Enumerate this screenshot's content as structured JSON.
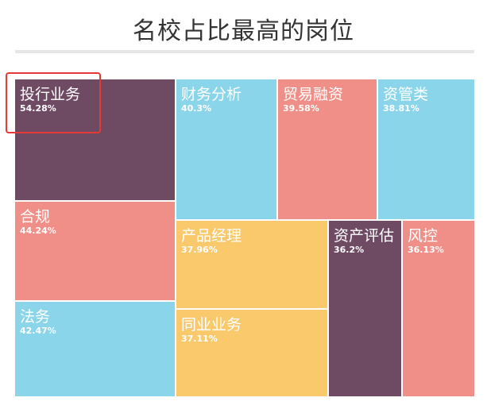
{
  "chart_data": {
    "type": "treemap",
    "title": "名校占比最高的岗位",
    "items": [
      {
        "name": "投行业务",
        "label": "54.28%",
        "value": 54.28,
        "color": "#6e4a63"
      },
      {
        "name": "财务分析",
        "label": "40.3%",
        "value": 40.3,
        "color": "#8bd5ea"
      },
      {
        "name": "贸易融资",
        "label": "39.58%",
        "value": 39.58,
        "color": "#f08f87"
      },
      {
        "name": "资管类",
        "label": "38.81%",
        "value": 38.81,
        "color": "#8bd5ea"
      },
      {
        "name": "合规",
        "label": "44.24%",
        "value": 44.24,
        "color": "#f08f87"
      },
      {
        "name": "产品经理",
        "label": "37.96%",
        "value": 37.96,
        "color": "#f9c96b"
      },
      {
        "name": "资产评估",
        "label": "36.2%",
        "value": 36.2,
        "color": "#6e4a63"
      },
      {
        "name": "风控",
        "label": "36.13%",
        "value": 36.13,
        "color": "#f08f87"
      },
      {
        "name": "法务",
        "label": "42.47%",
        "value": 42.47,
        "color": "#8bd5ea"
      },
      {
        "name": "同业业务",
        "label": "37.11%",
        "value": 37.11,
        "color": "#f9c96b"
      }
    ],
    "highlight": "投行业务"
  }
}
